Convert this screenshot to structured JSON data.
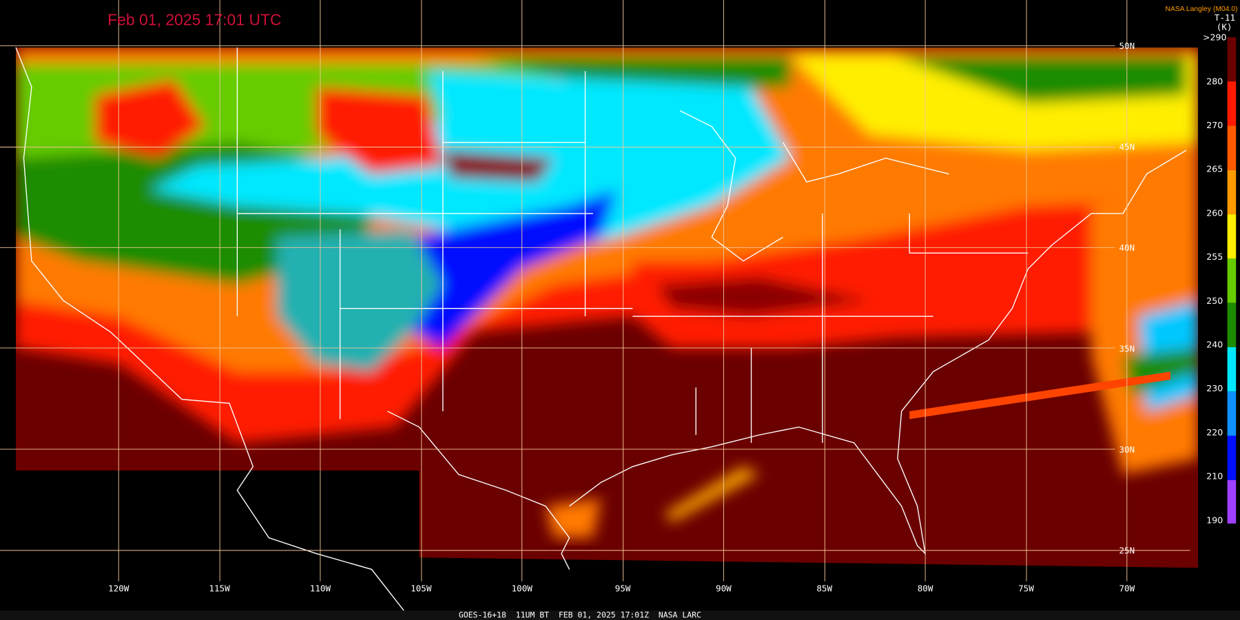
{
  "header": {
    "title": "Feb 01, 2025 17:01 UTC",
    "source": "NASA Langley (M04.0)"
  },
  "colorbar": {
    "label": "T-11",
    "unit": "(K)",
    "ticks": [
      ">290",
      "280",
      "270",
      "265",
      "260",
      "255",
      "250",
      "240",
      "230",
      "220",
      "210",
      "190"
    ]
  },
  "longitudes": [
    "120W",
    "115W",
    "110W",
    "105W",
    "100W",
    "95W",
    "90W",
    "85W",
    "80W",
    "75W",
    "70W"
  ],
  "latitudes": [
    "50N",
    "45N",
    "40N",
    "35N",
    "30N",
    "25N"
  ],
  "footer": "GOES-16+18  11UM BT  FEB 01, 2025 17:01Z  NASA LARC"
}
